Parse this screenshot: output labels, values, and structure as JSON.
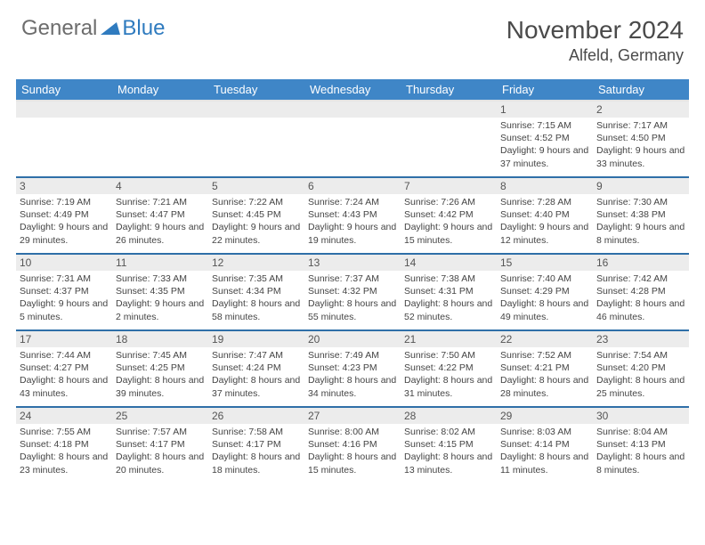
{
  "logo": {
    "text1": "General",
    "text2": "Blue",
    "tri_color": "#2f7bbf",
    "text1_color": "#6d6d6d"
  },
  "header": {
    "month_title": "November 2024",
    "location": "Alfeld, Germany"
  },
  "styling": {
    "header_bg": "#3f86c7",
    "header_text": "#ffffff",
    "row_divider": "#2f6fa8",
    "daynum_bg": "#ececec",
    "body_text": "#444444",
    "page_bg": "#ffffff"
  },
  "daynames": [
    "Sunday",
    "Monday",
    "Tuesday",
    "Wednesday",
    "Thursday",
    "Friday",
    "Saturday"
  ],
  "weeks": [
    [
      {
        "n": "",
        "sr": "",
        "ss": "",
        "dl": ""
      },
      {
        "n": "",
        "sr": "",
        "ss": "",
        "dl": ""
      },
      {
        "n": "",
        "sr": "",
        "ss": "",
        "dl": ""
      },
      {
        "n": "",
        "sr": "",
        "ss": "",
        "dl": ""
      },
      {
        "n": "",
        "sr": "",
        "ss": "",
        "dl": ""
      },
      {
        "n": "1",
        "sr": "Sunrise: 7:15 AM",
        "ss": "Sunset: 4:52 PM",
        "dl": "Daylight: 9 hours and 37 minutes."
      },
      {
        "n": "2",
        "sr": "Sunrise: 7:17 AM",
        "ss": "Sunset: 4:50 PM",
        "dl": "Daylight: 9 hours and 33 minutes."
      }
    ],
    [
      {
        "n": "3",
        "sr": "Sunrise: 7:19 AM",
        "ss": "Sunset: 4:49 PM",
        "dl": "Daylight: 9 hours and 29 minutes."
      },
      {
        "n": "4",
        "sr": "Sunrise: 7:21 AM",
        "ss": "Sunset: 4:47 PM",
        "dl": "Daylight: 9 hours and 26 minutes."
      },
      {
        "n": "5",
        "sr": "Sunrise: 7:22 AM",
        "ss": "Sunset: 4:45 PM",
        "dl": "Daylight: 9 hours and 22 minutes."
      },
      {
        "n": "6",
        "sr": "Sunrise: 7:24 AM",
        "ss": "Sunset: 4:43 PM",
        "dl": "Daylight: 9 hours and 19 minutes."
      },
      {
        "n": "7",
        "sr": "Sunrise: 7:26 AM",
        "ss": "Sunset: 4:42 PM",
        "dl": "Daylight: 9 hours and 15 minutes."
      },
      {
        "n": "8",
        "sr": "Sunrise: 7:28 AM",
        "ss": "Sunset: 4:40 PM",
        "dl": "Daylight: 9 hours and 12 minutes."
      },
      {
        "n": "9",
        "sr": "Sunrise: 7:30 AM",
        "ss": "Sunset: 4:38 PM",
        "dl": "Daylight: 9 hours and 8 minutes."
      }
    ],
    [
      {
        "n": "10",
        "sr": "Sunrise: 7:31 AM",
        "ss": "Sunset: 4:37 PM",
        "dl": "Daylight: 9 hours and 5 minutes."
      },
      {
        "n": "11",
        "sr": "Sunrise: 7:33 AM",
        "ss": "Sunset: 4:35 PM",
        "dl": "Daylight: 9 hours and 2 minutes."
      },
      {
        "n": "12",
        "sr": "Sunrise: 7:35 AM",
        "ss": "Sunset: 4:34 PM",
        "dl": "Daylight: 8 hours and 58 minutes."
      },
      {
        "n": "13",
        "sr": "Sunrise: 7:37 AM",
        "ss": "Sunset: 4:32 PM",
        "dl": "Daylight: 8 hours and 55 minutes."
      },
      {
        "n": "14",
        "sr": "Sunrise: 7:38 AM",
        "ss": "Sunset: 4:31 PM",
        "dl": "Daylight: 8 hours and 52 minutes."
      },
      {
        "n": "15",
        "sr": "Sunrise: 7:40 AM",
        "ss": "Sunset: 4:29 PM",
        "dl": "Daylight: 8 hours and 49 minutes."
      },
      {
        "n": "16",
        "sr": "Sunrise: 7:42 AM",
        "ss": "Sunset: 4:28 PM",
        "dl": "Daylight: 8 hours and 46 minutes."
      }
    ],
    [
      {
        "n": "17",
        "sr": "Sunrise: 7:44 AM",
        "ss": "Sunset: 4:27 PM",
        "dl": "Daylight: 8 hours and 43 minutes."
      },
      {
        "n": "18",
        "sr": "Sunrise: 7:45 AM",
        "ss": "Sunset: 4:25 PM",
        "dl": "Daylight: 8 hours and 39 minutes."
      },
      {
        "n": "19",
        "sr": "Sunrise: 7:47 AM",
        "ss": "Sunset: 4:24 PM",
        "dl": "Daylight: 8 hours and 37 minutes."
      },
      {
        "n": "20",
        "sr": "Sunrise: 7:49 AM",
        "ss": "Sunset: 4:23 PM",
        "dl": "Daylight: 8 hours and 34 minutes."
      },
      {
        "n": "21",
        "sr": "Sunrise: 7:50 AM",
        "ss": "Sunset: 4:22 PM",
        "dl": "Daylight: 8 hours and 31 minutes."
      },
      {
        "n": "22",
        "sr": "Sunrise: 7:52 AM",
        "ss": "Sunset: 4:21 PM",
        "dl": "Daylight: 8 hours and 28 minutes."
      },
      {
        "n": "23",
        "sr": "Sunrise: 7:54 AM",
        "ss": "Sunset: 4:20 PM",
        "dl": "Daylight: 8 hours and 25 minutes."
      }
    ],
    [
      {
        "n": "24",
        "sr": "Sunrise: 7:55 AM",
        "ss": "Sunset: 4:18 PM",
        "dl": "Daylight: 8 hours and 23 minutes."
      },
      {
        "n": "25",
        "sr": "Sunrise: 7:57 AM",
        "ss": "Sunset: 4:17 PM",
        "dl": "Daylight: 8 hours and 20 minutes."
      },
      {
        "n": "26",
        "sr": "Sunrise: 7:58 AM",
        "ss": "Sunset: 4:17 PM",
        "dl": "Daylight: 8 hours and 18 minutes."
      },
      {
        "n": "27",
        "sr": "Sunrise: 8:00 AM",
        "ss": "Sunset: 4:16 PM",
        "dl": "Daylight: 8 hours and 15 minutes."
      },
      {
        "n": "28",
        "sr": "Sunrise: 8:02 AM",
        "ss": "Sunset: 4:15 PM",
        "dl": "Daylight: 8 hours and 13 minutes."
      },
      {
        "n": "29",
        "sr": "Sunrise: 8:03 AM",
        "ss": "Sunset: 4:14 PM",
        "dl": "Daylight: 8 hours and 11 minutes."
      },
      {
        "n": "30",
        "sr": "Sunrise: 8:04 AM",
        "ss": "Sunset: 4:13 PM",
        "dl": "Daylight: 8 hours and 8 minutes."
      }
    ]
  ]
}
